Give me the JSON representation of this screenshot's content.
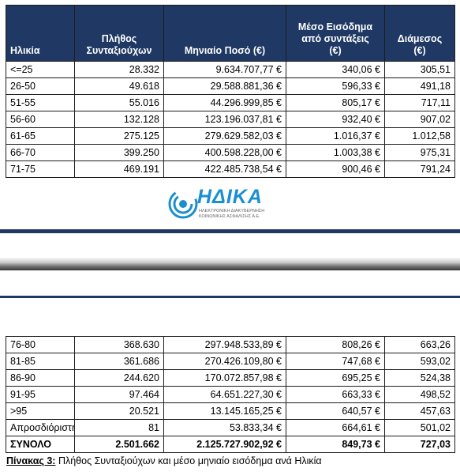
{
  "headers": {
    "age": "Ηλικία",
    "count": "Πλήθος\nΣυνταξιούχων",
    "monthly": "Μηνιαίο Ποσό (€)",
    "mean": "Μέσο Εισόδημα\nαπό συντάξεις\n(€)",
    "median": "Διάμεσος\n(€)"
  },
  "rows_top": [
    {
      "age": "<=25",
      "count": "28.332",
      "monthly": "9.634.707,77 €",
      "mean": "340,06 €",
      "median": "305,51"
    },
    {
      "age": "26-50",
      "count": "49.618",
      "monthly": "29.588.881,36 €",
      "mean": "596,33 €",
      "median": "491,18"
    },
    {
      "age": "51-55",
      "count": "55.016",
      "monthly": "44.296.999,85 €",
      "mean": "805,17 €",
      "median": "717,11"
    },
    {
      "age": "56-60",
      "count": "132.128",
      "monthly": "123.196.037,81 €",
      "mean": "932,40 €",
      "median": "907,02"
    },
    {
      "age": "61-65",
      "count": "275.125",
      "monthly": "279.629.582,03 €",
      "mean": "1.016,37 €",
      "median": "1.012,58"
    },
    {
      "age": "66-70",
      "count": "399.250",
      "monthly": "400.598.228,00 €",
      "mean": "1.003,38 €",
      "median": "975,31"
    },
    {
      "age": "71-75",
      "count": "469.191",
      "monthly": "422.485.738,54 €",
      "mean": "900,46 €",
      "median": "791,24"
    }
  ],
  "rows_bottom": [
    {
      "age": "76-80",
      "count": "368.630",
      "monthly": "297.948.533,89 €",
      "mean": "808,26 €",
      "median": "663,26"
    },
    {
      "age": "81-85",
      "count": "361.686",
      "monthly": "270.426.109,80 €",
      "mean": "747,68 €",
      "median": "593,02"
    },
    {
      "age": "86-90",
      "count": "244.620",
      "monthly": "170.072.857,98 €",
      "mean": "695,25 €",
      "median": "524,38"
    },
    {
      "age": "91-95",
      "count": "97.464",
      "monthly": "64.651.227,30 €",
      "mean": "663,33 €",
      "median": "498,52"
    },
    {
      "age": ">95",
      "count": "20.521",
      "monthly": "13.145.165,25 €",
      "mean": "640,57 €",
      "median": "457,63"
    },
    {
      "age": "Απροσδιόριστη",
      "count": "81",
      "monthly": "53.833,34 €",
      "mean": "664,61 €",
      "median": "501,02"
    }
  ],
  "total": {
    "age": "ΣΥΝΟΛΟ",
    "count": "2.501.662",
    "monthly": "2.125.727.902,92 €",
    "mean": "849,73 €",
    "median": "727,03"
  },
  "logo": {
    "name": "ΗΔΙΚΑ",
    "sub1": "ΗΛΕΚΤΡΟΝΙΚΗ ΔΙΑΚΥΒΕΡΝΗΣΗ",
    "sub2": "ΚΟΙΝΩΝΙΚΗΣ ΑΣΦΑΛΙΣΗΣ Α.Ε.",
    "color": "#1a8fd0"
  },
  "caption": {
    "label": "Πίνακας 3:",
    "text": " Πλήθος Συνταξιούχων και μέσο μηνιαίο εισόδημα ανά Ηλικία"
  },
  "colors": {
    "header_bg": "#1f3864",
    "header_text": "#ffffff"
  }
}
